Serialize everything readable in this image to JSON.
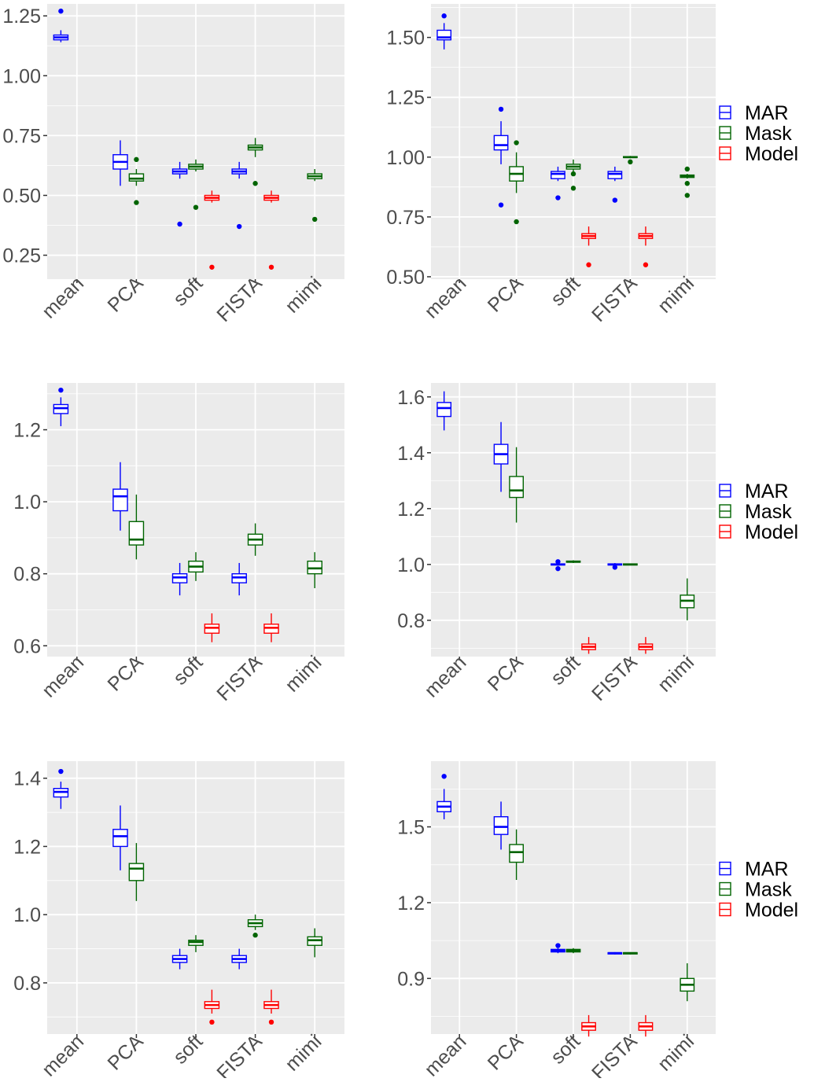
{
  "colors": {
    "panel_bg": "#EBEBEB",
    "grid": "#FFFFFF",
    "tick_text": "#4D4D4D",
    "series": {
      "MAR": "#0000FF",
      "Mask": "#006400",
      "Model": "#FF0000"
    }
  },
  "legend": {
    "placement": "right",
    "entries": [
      "MAR",
      "Mask",
      "Model"
    ]
  },
  "chart_data": [
    {
      "type": "boxplot",
      "categories": [
        "mean",
        "PCA",
        "soft",
        "FISTA",
        "mimi"
      ],
      "y_ticks": [
        "0.25",
        "0.50",
        "0.75",
        "1.00",
        "1.25"
      ],
      "ylim": [
        0.15,
        1.3
      ],
      "grid": true,
      "legend": false,
      "series": [
        {
          "name": "MAR",
          "boxes": [
            {
              "category": "mean",
              "lower": 1.14,
              "q1": 1.15,
              "median": 1.16,
              "q3": 1.17,
              "upper": 1.19,
              "outliers": [
                1.27
              ]
            },
            {
              "category": "PCA",
              "lower": 0.54,
              "q1": 0.61,
              "median": 0.64,
              "q3": 0.67,
              "upper": 0.73,
              "outliers": []
            },
            {
              "category": "soft",
              "lower": 0.57,
              "q1": 0.59,
              "median": 0.6,
              "q3": 0.61,
              "upper": 0.64,
              "outliers": [
                0.38
              ]
            },
            {
              "category": "FISTA",
              "lower": 0.57,
              "q1": 0.59,
              "median": 0.6,
              "q3": 0.61,
              "upper": 0.64,
              "outliers": [
                0.37
              ]
            }
          ]
        },
        {
          "name": "Mask",
          "boxes": [
            {
              "category": "PCA",
              "lower": 0.54,
              "q1": 0.56,
              "median": 0.57,
              "q3": 0.59,
              "upper": 0.61,
              "outliers": [
                0.65,
                0.47
              ]
            },
            {
              "category": "soft",
              "lower": 0.6,
              "q1": 0.61,
              "median": 0.62,
              "q3": 0.63,
              "upper": 0.65,
              "outliers": [
                0.45
              ]
            },
            {
              "category": "FISTA",
              "lower": 0.66,
              "q1": 0.69,
              "median": 0.7,
              "q3": 0.71,
              "upper": 0.74,
              "outliers": [
                0.55
              ]
            },
            {
              "category": "mimi",
              "lower": 0.56,
              "q1": 0.57,
              "median": 0.58,
              "q3": 0.59,
              "upper": 0.61,
              "outliers": [
                0.4
              ]
            }
          ]
        },
        {
          "name": "Model",
          "boxes": [
            {
              "category": "soft",
              "lower": 0.47,
              "q1": 0.48,
              "median": 0.49,
              "q3": 0.5,
              "upper": 0.52,
              "outliers": [
                0.2
              ]
            },
            {
              "category": "FISTA",
              "lower": 0.47,
              "q1": 0.48,
              "median": 0.49,
              "q3": 0.5,
              "upper": 0.52,
              "outliers": [
                0.2
              ]
            }
          ]
        }
      ]
    },
    {
      "type": "boxplot",
      "categories": [
        "mean",
        "PCA",
        "soft",
        "FISTA",
        "mimi"
      ],
      "y_ticks": [
        "0.50",
        "0.75",
        "1.00",
        "1.25",
        "1.50"
      ],
      "ylim": [
        0.49,
        1.64
      ],
      "grid": true,
      "legend": true,
      "series": [
        {
          "name": "MAR",
          "boxes": [
            {
              "category": "mean",
              "lower": 1.45,
              "q1": 1.49,
              "median": 1.5,
              "q3": 1.53,
              "upper": 1.56,
              "outliers": [
                1.59
              ]
            },
            {
              "category": "PCA",
              "lower": 0.97,
              "q1": 1.03,
              "median": 1.05,
              "q3": 1.09,
              "upper": 1.15,
              "outliers": [
                1.2,
                0.8
              ]
            },
            {
              "category": "soft",
              "lower": 0.9,
              "q1": 0.91,
              "median": 0.93,
              "q3": 0.94,
              "upper": 0.96,
              "outliers": [
                0.83
              ]
            },
            {
              "category": "FISTA",
              "lower": 0.9,
              "q1": 0.91,
              "median": 0.93,
              "q3": 0.94,
              "upper": 0.96,
              "outliers": [
                0.82
              ]
            }
          ]
        },
        {
          "name": "Mask",
          "boxes": [
            {
              "category": "PCA",
              "lower": 0.85,
              "q1": 0.9,
              "median": 0.93,
              "q3": 0.96,
              "upper": 1.02,
              "outliers": [
                1.06,
                0.73
              ]
            },
            {
              "category": "soft",
              "lower": 0.94,
              "q1": 0.95,
              "median": 0.96,
              "q3": 0.97,
              "upper": 0.99,
              "outliers": [
                0.93,
                0.87
              ]
            },
            {
              "category": "FISTA",
              "lower": 0.995,
              "q1": 0.998,
              "median": 1.0,
              "q3": 1.002,
              "upper": 1.005,
              "outliers": [
                0.98
              ]
            },
            {
              "category": "mimi",
              "lower": 0.91,
              "q1": 0.915,
              "median": 0.92,
              "q3": 0.925,
              "upper": 0.93,
              "outliers": [
                0.95,
                0.89,
                0.84
              ]
            }
          ]
        },
        {
          "name": "Model",
          "boxes": [
            {
              "category": "soft",
              "lower": 0.63,
              "q1": 0.66,
              "median": 0.67,
              "q3": 0.68,
              "upper": 0.71,
              "outliers": [
                0.55
              ]
            },
            {
              "category": "FISTA",
              "lower": 0.63,
              "q1": 0.66,
              "median": 0.67,
              "q3": 0.68,
              "upper": 0.71,
              "outliers": [
                0.55
              ]
            }
          ]
        }
      ]
    },
    {
      "type": "boxplot",
      "categories": [
        "mean",
        "PCA",
        "soft",
        "FISTA",
        "mimi"
      ],
      "y_ticks": [
        "0.6",
        "0.8",
        "1.0",
        "1.2"
      ],
      "ylim": [
        0.57,
        1.33
      ],
      "grid": true,
      "legend": false,
      "series": [
        {
          "name": "MAR",
          "boxes": [
            {
              "category": "mean",
              "lower": 1.21,
              "q1": 1.245,
              "median": 1.26,
              "q3": 1.27,
              "upper": 1.29,
              "outliers": [
                1.31
              ]
            },
            {
              "category": "PCA",
              "lower": 0.92,
              "q1": 0.975,
              "median": 1.015,
              "q3": 1.035,
              "upper": 1.11,
              "outliers": []
            },
            {
              "category": "soft",
              "lower": 0.74,
              "q1": 0.775,
              "median": 0.79,
              "q3": 0.8,
              "upper": 0.83,
              "outliers": []
            },
            {
              "category": "FISTA",
              "lower": 0.74,
              "q1": 0.775,
              "median": 0.79,
              "q3": 0.8,
              "upper": 0.83,
              "outliers": []
            }
          ]
        },
        {
          "name": "Mask",
          "boxes": [
            {
              "category": "PCA",
              "lower": 0.84,
              "q1": 0.88,
              "median": 0.895,
              "q3": 0.945,
              "upper": 1.02,
              "outliers": []
            },
            {
              "category": "soft",
              "lower": 0.78,
              "q1": 0.805,
              "median": 0.82,
              "q3": 0.835,
              "upper": 0.86,
              "outliers": []
            },
            {
              "category": "FISTA",
              "lower": 0.85,
              "q1": 0.88,
              "median": 0.895,
              "q3": 0.91,
              "upper": 0.94,
              "outliers": []
            },
            {
              "category": "mimi",
              "lower": 0.76,
              "q1": 0.8,
              "median": 0.815,
              "q3": 0.835,
              "upper": 0.86,
              "outliers": []
            }
          ]
        },
        {
          "name": "Model",
          "boxes": [
            {
              "category": "soft",
              "lower": 0.61,
              "q1": 0.635,
              "median": 0.65,
              "q3": 0.66,
              "upper": 0.69,
              "outliers": []
            },
            {
              "category": "FISTA",
              "lower": 0.61,
              "q1": 0.635,
              "median": 0.65,
              "q3": 0.66,
              "upper": 0.69,
              "outliers": []
            }
          ]
        }
      ]
    },
    {
      "type": "boxplot",
      "categories": [
        "mean",
        "PCA",
        "soft",
        "FISTA",
        "mimi"
      ],
      "y_ticks": [
        "0.8",
        "1.0",
        "1.2",
        "1.4",
        "1.6"
      ],
      "ylim": [
        0.67,
        1.65
      ],
      "grid": true,
      "legend": true,
      "series": [
        {
          "name": "MAR",
          "boxes": [
            {
              "category": "mean",
              "lower": 1.48,
              "q1": 1.53,
              "median": 1.56,
              "q3": 1.58,
              "upper": 1.62,
              "outliers": []
            },
            {
              "category": "PCA",
              "lower": 1.26,
              "q1": 1.36,
              "median": 1.395,
              "q3": 1.43,
              "upper": 1.51,
              "outliers": []
            },
            {
              "category": "soft",
              "lower": 0.995,
              "q1": 0.998,
              "median": 1.0,
              "q3": 1.002,
              "upper": 1.005,
              "outliers": [
                1.01,
                0.985
              ]
            },
            {
              "category": "FISTA",
              "lower": 0.995,
              "q1": 0.998,
              "median": 1.0,
              "q3": 1.002,
              "upper": 1.005,
              "outliers": [
                0.99
              ]
            }
          ]
        },
        {
          "name": "Mask",
          "boxes": [
            {
              "category": "PCA",
              "lower": 1.15,
              "q1": 1.24,
              "median": 1.265,
              "q3": 1.315,
              "upper": 1.42,
              "outliers": []
            },
            {
              "category": "soft",
              "lower": 1.005,
              "q1": 1.008,
              "median": 1.01,
              "q3": 1.012,
              "upper": 1.015,
              "outliers": []
            },
            {
              "category": "FISTA",
              "lower": 0.997,
              "q1": 0.998,
              "median": 1.0,
              "q3": 1.002,
              "upper": 1.003,
              "outliers": []
            },
            {
              "category": "mimi",
              "lower": 0.8,
              "q1": 0.845,
              "median": 0.87,
              "q3": 0.89,
              "upper": 0.95,
              "outliers": []
            }
          ]
        },
        {
          "name": "Model",
          "boxes": [
            {
              "category": "soft",
              "lower": 0.68,
              "q1": 0.695,
              "median": 0.705,
              "q3": 0.715,
              "upper": 0.74,
              "outliers": []
            },
            {
              "category": "FISTA",
              "lower": 0.68,
              "q1": 0.695,
              "median": 0.705,
              "q3": 0.715,
              "upper": 0.74,
              "outliers": []
            }
          ]
        }
      ]
    },
    {
      "type": "boxplot",
      "categories": [
        "mean",
        "PCA",
        "soft",
        "FISTA",
        "mimi"
      ],
      "y_ticks": [
        "0.8",
        "1.0",
        "1.2",
        "1.4"
      ],
      "ylim": [
        0.65,
        1.45
      ],
      "grid": true,
      "legend": false,
      "series": [
        {
          "name": "MAR",
          "boxes": [
            {
              "category": "mean",
              "lower": 1.31,
              "q1": 1.345,
              "median": 1.36,
              "q3": 1.37,
              "upper": 1.39,
              "outliers": [
                1.42
              ]
            },
            {
              "category": "PCA",
              "lower": 1.13,
              "q1": 1.2,
              "median": 1.23,
              "q3": 1.25,
              "upper": 1.32,
              "outliers": []
            },
            {
              "category": "soft",
              "lower": 0.84,
              "q1": 0.86,
              "median": 0.87,
              "q3": 0.88,
              "upper": 0.9,
              "outliers": []
            },
            {
              "category": "FISTA",
              "lower": 0.84,
              "q1": 0.86,
              "median": 0.87,
              "q3": 0.88,
              "upper": 0.9,
              "outliers": []
            }
          ]
        },
        {
          "name": "Mask",
          "boxes": [
            {
              "category": "PCA",
              "lower": 1.04,
              "q1": 1.1,
              "median": 1.135,
              "q3": 1.15,
              "upper": 1.21,
              "outliers": []
            },
            {
              "category": "soft",
              "lower": 0.89,
              "q1": 0.91,
              "median": 0.92,
              "q3": 0.925,
              "upper": 0.94,
              "outliers": []
            },
            {
              "category": "FISTA",
              "lower": 0.955,
              "q1": 0.965,
              "median": 0.975,
              "q3": 0.985,
              "upper": 1.0,
              "outliers": [
                0.94
              ]
            },
            {
              "category": "mimi",
              "lower": 0.875,
              "q1": 0.91,
              "median": 0.925,
              "q3": 0.935,
              "upper": 0.96,
              "outliers": []
            }
          ]
        },
        {
          "name": "Model",
          "boxes": [
            {
              "category": "soft",
              "lower": 0.71,
              "q1": 0.725,
              "median": 0.735,
              "q3": 0.745,
              "upper": 0.78,
              "outliers": [
                0.685
              ]
            },
            {
              "category": "FISTA",
              "lower": 0.71,
              "q1": 0.725,
              "median": 0.735,
              "q3": 0.745,
              "upper": 0.78,
              "outliers": [
                0.685
              ]
            }
          ]
        }
      ]
    },
    {
      "type": "boxplot",
      "categories": [
        "mean",
        "PCA",
        "soft",
        "FISTA",
        "mimi"
      ],
      "y_ticks": [
        "0.9",
        "1.2",
        "1.5"
      ],
      "ylim": [
        0.68,
        1.76
      ],
      "grid": true,
      "legend": true,
      "series": [
        {
          "name": "MAR",
          "boxes": [
            {
              "category": "mean",
              "lower": 1.53,
              "q1": 1.56,
              "median": 1.58,
              "q3": 1.6,
              "upper": 1.65,
              "outliers": [
                1.7
              ]
            },
            {
              "category": "PCA",
              "lower": 1.41,
              "q1": 1.47,
              "median": 1.5,
              "q3": 1.54,
              "upper": 1.6,
              "outliers": []
            },
            {
              "category": "soft",
              "lower": 1.0,
              "q1": 1.005,
              "median": 1.01,
              "q3": 1.015,
              "upper": 1.02,
              "outliers": [
                1.03
              ]
            },
            {
              "category": "FISTA",
              "lower": 0.995,
              "q1": 0.997,
              "median": 1.0,
              "q3": 1.002,
              "upper": 1.004,
              "outliers": []
            }
          ]
        },
        {
          "name": "Mask",
          "boxes": [
            {
              "category": "PCA",
              "lower": 1.29,
              "q1": 1.36,
              "median": 1.4,
              "q3": 1.43,
              "upper": 1.49,
              "outliers": []
            },
            {
              "category": "soft",
              "lower": 1.0,
              "q1": 1.005,
              "median": 1.01,
              "q3": 1.015,
              "upper": 1.02,
              "outliers": []
            },
            {
              "category": "FISTA",
              "lower": 0.995,
              "q1": 0.997,
              "median": 1.0,
              "q3": 1.002,
              "upper": 1.004,
              "outliers": []
            },
            {
              "category": "mimi",
              "lower": 0.81,
              "q1": 0.85,
              "median": 0.875,
              "q3": 0.9,
              "upper": 0.96,
              "outliers": []
            }
          ]
        },
        {
          "name": "Model",
          "boxes": [
            {
              "category": "soft",
              "lower": 0.67,
              "q1": 0.695,
              "median": 0.71,
              "q3": 0.725,
              "upper": 0.755,
              "outliers": []
            },
            {
              "category": "FISTA",
              "lower": 0.67,
              "q1": 0.695,
              "median": 0.71,
              "q3": 0.725,
              "upper": 0.755,
              "outliers": []
            }
          ]
        }
      ]
    }
  ]
}
